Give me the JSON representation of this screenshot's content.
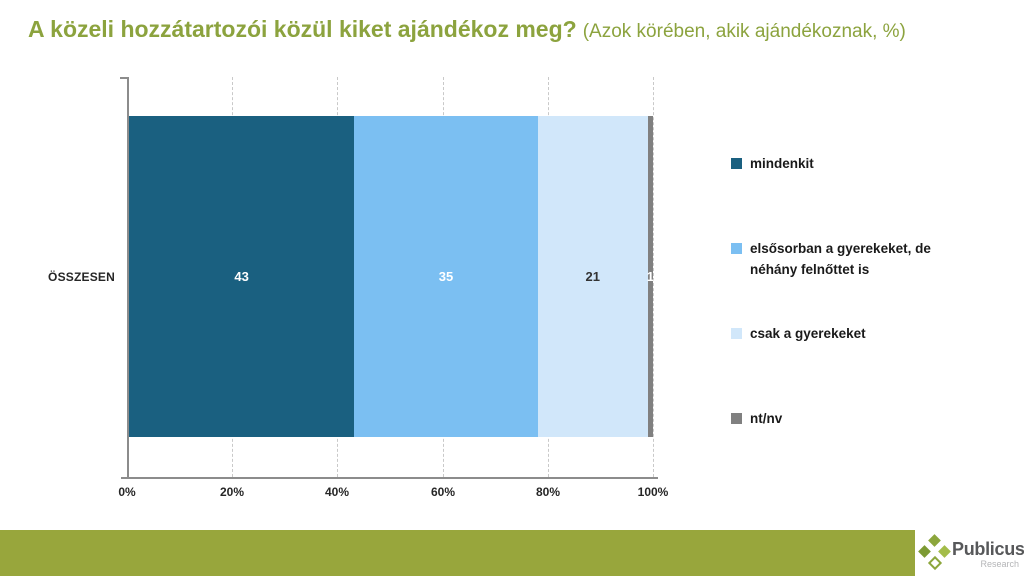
{
  "title": {
    "main": "A közeli hozzátartozói közül kiket ajándékoz meg?",
    "subtitle": "(Azok körében, akik ajándékoznak, %)",
    "color": "#8CA33E"
  },
  "chart_data": {
    "type": "bar",
    "orientation": "horizontal-stacked",
    "title": "A közeli hozzátartozói közül kiket ajándékoz meg? (Azok körében, akik ajándékoznak, %)",
    "categories": [
      "ÖSSZESEN"
    ],
    "series": [
      {
        "name": "mindenkit",
        "values": [
          43
        ],
        "color": "#1A6080",
        "label_color": "#FFFFFF"
      },
      {
        "name": "elsősorban a gyerekeket, de néhány felnőttet is",
        "values": [
          35
        ],
        "color": "#7BBFF2",
        "label_color": "#FFFFFF"
      },
      {
        "name": "csak a gyerekeket",
        "values": [
          21
        ],
        "color": "#D1E7FA",
        "label_color": "#333333"
      },
      {
        "name": "nt/nv",
        "values": [
          1
        ],
        "color": "#808080",
        "label_color": "#FFFFFF"
      }
    ],
    "x_ticks": [
      "0%",
      "20%",
      "40%",
      "60%",
      "80%",
      "100%"
    ],
    "xlim": [
      0,
      100
    ],
    "grid": "vertical-dashed",
    "legend_position": "right"
  },
  "footer": {
    "bar_color": "#98A63C",
    "logo_text": "Publicus",
    "logo_subtext": "Research"
  }
}
